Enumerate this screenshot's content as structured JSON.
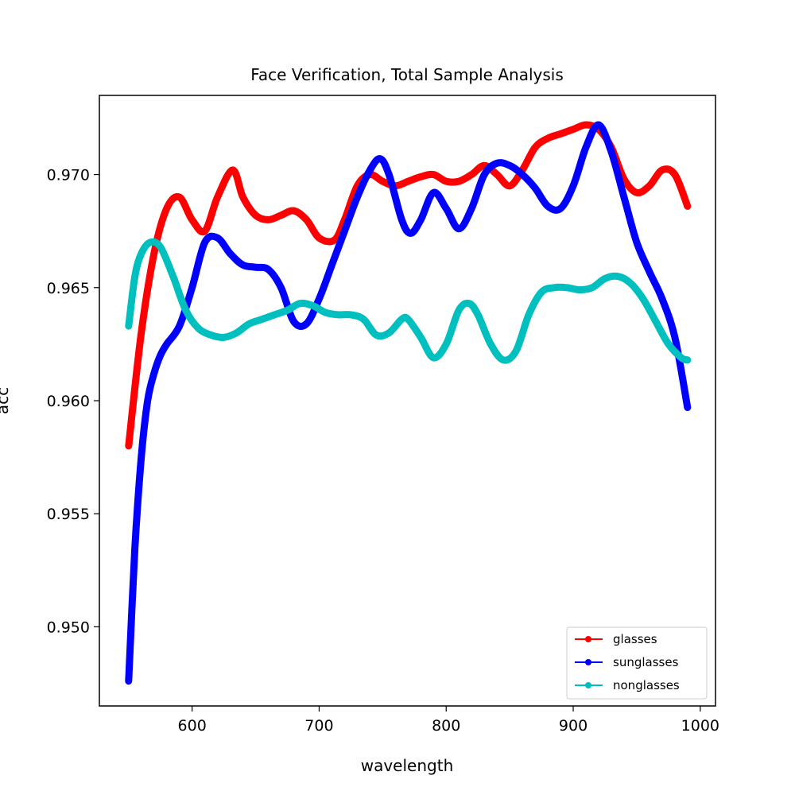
{
  "chart_data": {
    "type": "line",
    "title": "Face Verification, Total Sample Analysis",
    "xlabel": "wavelength",
    "ylabel": "acc",
    "xlim": [
      527,
      1012
    ],
    "ylim": [
      0.9465,
      0.9735
    ],
    "xticks": [
      600,
      700,
      800,
      900,
      1000
    ],
    "yticks": [
      0.95,
      0.955,
      0.96,
      0.965,
      0.97
    ],
    "xtick_labels": [
      "600",
      "700",
      "800",
      "900",
      "1000"
    ],
    "ytick_labels": [
      "0.950",
      "0.955",
      "0.960",
      "0.965",
      "0.970"
    ],
    "grid": false,
    "legend_position": "lower right",
    "series": [
      {
        "name": "glasses",
        "color": "#ff0000",
        "x": [
          550,
          560,
          570,
          580,
          590,
          600,
          610,
          620,
          632,
          640,
          650,
          660,
          670,
          680,
          690,
          700,
          712,
          720,
          730,
          740,
          750,
          760,
          770,
          780,
          790,
          800,
          810,
          820,
          830,
          840,
          850,
          860,
          870,
          880,
          890,
          900,
          910,
          920,
          930,
          940,
          950,
          960,
          970,
          980,
          990
        ],
        "y": [
          0.958,
          0.963,
          0.9665,
          0.9685,
          0.969,
          0.968,
          0.9675,
          0.969,
          0.9702,
          0.969,
          0.9682,
          0.968,
          0.9682,
          0.9684,
          0.968,
          0.9672,
          0.9671,
          0.968,
          0.9695,
          0.97,
          0.9697,
          0.9695,
          0.9697,
          0.9699,
          0.97,
          0.9697,
          0.9697,
          0.97,
          0.9704,
          0.97,
          0.9695,
          0.9702,
          0.9712,
          0.9716,
          0.9718,
          0.972,
          0.9722,
          0.972,
          0.9712,
          0.9698,
          0.9692,
          0.9695,
          0.9702,
          0.97,
          0.9686
        ]
      },
      {
        "name": "sunglasses",
        "color": "#0000ff",
        "x": [
          550,
          555,
          560,
          565,
          570,
          575,
          580,
          590,
          600,
          610,
          620,
          630,
          640,
          650,
          660,
          670,
          680,
          690,
          700,
          710,
          720,
          730,
          740,
          748,
          755,
          765,
          772,
          780,
          790,
          800,
          810,
          820,
          830,
          840,
          850,
          860,
          870,
          880,
          890,
          900,
          910,
          920,
          930,
          940,
          950,
          960,
          970,
          980,
          990
        ],
        "y": [
          0.9476,
          0.9535,
          0.9575,
          0.96,
          0.9612,
          0.962,
          0.9625,
          0.9633,
          0.965,
          0.967,
          0.9672,
          0.9665,
          0.966,
          0.9659,
          0.9658,
          0.965,
          0.9635,
          0.9634,
          0.9645,
          0.966,
          0.9675,
          0.969,
          0.9702,
          0.9707,
          0.97,
          0.968,
          0.9674,
          0.968,
          0.9692,
          0.9685,
          0.9676,
          0.9685,
          0.97,
          0.9705,
          0.9704,
          0.97,
          0.9694,
          0.9686,
          0.9685,
          0.9695,
          0.9712,
          0.9722,
          0.971,
          0.969,
          0.967,
          0.9657,
          0.9645,
          0.9628,
          0.9597
        ]
      },
      {
        "name": "nonglasses",
        "color": "#00bfbf",
        "x": [
          550,
          555,
          560,
          567,
          575,
          585,
          595,
          605,
          615,
          625,
          635,
          645,
          655,
          665,
          675,
          685,
          695,
          705,
          715,
          725,
          735,
          745,
          755,
          765,
          770,
          780,
          790,
          800,
          810,
          818,
          825,
          835,
          845,
          855,
          865,
          875,
          885,
          895,
          905,
          915,
          925,
          935,
          945,
          955,
          965,
          975,
          985,
          990
        ],
        "y": [
          0.9633,
          0.9655,
          0.9665,
          0.967,
          0.9668,
          0.9655,
          0.964,
          0.9632,
          0.9629,
          0.9628,
          0.963,
          0.9634,
          0.9636,
          0.9638,
          0.964,
          0.9643,
          0.9642,
          0.9639,
          0.9638,
          0.9638,
          0.9636,
          0.9629,
          0.963,
          0.9636,
          0.9636,
          0.9628,
          0.9619,
          0.9625,
          0.964,
          0.9643,
          0.9638,
          0.9625,
          0.9618,
          0.9622,
          0.9638,
          0.9648,
          0.965,
          0.965,
          0.9649,
          0.965,
          0.9654,
          0.9655,
          0.9652,
          0.9645,
          0.9635,
          0.9625,
          0.9619,
          0.9618
        ]
      }
    ]
  }
}
